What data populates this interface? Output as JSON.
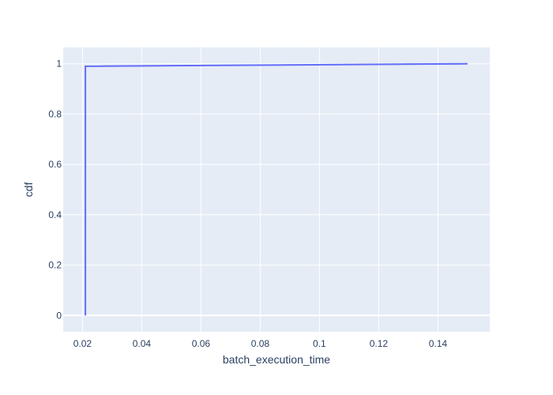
{
  "chart_data": {
    "type": "line",
    "xlabel": "batch_execution_time",
    "ylabel": "cdf",
    "xlim": [
      0.0135,
      0.1575
    ],
    "ylim": [
      -0.065,
      1.065
    ],
    "x_ticks": [
      0.02,
      0.04,
      0.06,
      0.08,
      0.1,
      0.12,
      0.14
    ],
    "x_tick_labels": [
      "0.02",
      "0.04",
      "0.06",
      "0.08",
      "0.1",
      "0.12",
      "0.14"
    ],
    "y_ticks": [
      0,
      0.2,
      0.4,
      0.6,
      0.8,
      1
    ],
    "y_tick_labels": [
      "0",
      "0.2",
      "0.4",
      "0.6",
      "0.8",
      "1"
    ],
    "grid": true,
    "plot_bgcolor": "#e5ecf6",
    "series": [
      {
        "color": "#636efa",
        "x": [
          0.021,
          0.021,
          0.15
        ],
        "y": [
          0,
          0.99,
          1.0
        ]
      },
      {
        "color": "#ef553b",
        "x": [
          0.021,
          0.021,
          0.15,
          0.15
        ],
        "y": [
          0,
          0.99,
          1.0,
          1.0
        ]
      }
    ]
  }
}
